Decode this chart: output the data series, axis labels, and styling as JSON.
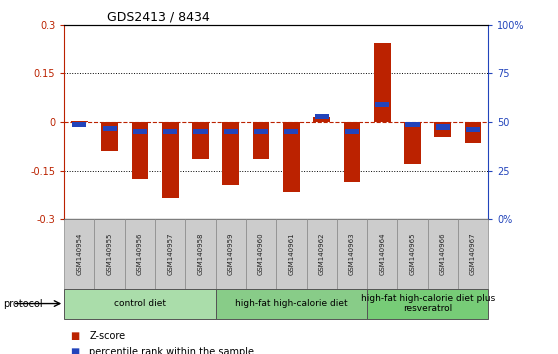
{
  "title": "GDS2413 / 8434",
  "samples": [
    "GSM140954",
    "GSM140955",
    "GSM140956",
    "GSM140957",
    "GSM140958",
    "GSM140959",
    "GSM140960",
    "GSM140961",
    "GSM140962",
    "GSM140963",
    "GSM140964",
    "GSM140965",
    "GSM140966",
    "GSM140967"
  ],
  "zscore": [
    0.005,
    -0.09,
    -0.175,
    -0.235,
    -0.115,
    -0.195,
    -0.115,
    -0.215,
    0.015,
    -0.185,
    0.245,
    -0.13,
    -0.045,
    -0.065
  ],
  "prank": [
    -0.008,
    -0.02,
    -0.03,
    -0.03,
    -0.028,
    -0.028,
    -0.028,
    -0.03,
    0.018,
    -0.028,
    0.055,
    -0.008,
    -0.015,
    -0.022
  ],
  "bar_color": "#bb2200",
  "blue_color": "#2244bb",
  "groups": [
    {
      "label": "control diet",
      "start": 0,
      "end": 5,
      "color": "#aaddaa"
    },
    {
      "label": "high-fat high-calorie diet",
      "start": 5,
      "end": 10,
      "color": "#88cc88"
    },
    {
      "label": "high-fat high-calorie diet plus\nresveratrol",
      "start": 10,
      "end": 14,
      "color": "#77cc77"
    }
  ],
  "ylim": [
    -0.3,
    0.3
  ],
  "yticks_left": [
    -0.3,
    -0.15,
    0.0,
    0.15,
    0.3
  ],
  "ytick_labels_left": [
    "-0.3",
    "-0.15",
    "0",
    "0.15",
    "0.3"
  ],
  "ytick_labels_right": [
    "0%",
    "25",
    "50",
    "75",
    "100%"
  ],
  "hline_color": "#bb2200",
  "dotted_lines": [
    -0.15,
    0.15
  ],
  "protocol_label": "protocol",
  "legend_zscore": "Z-score",
  "legend_prank": "percentile rank within the sample",
  "bar_width": 0.55,
  "blue_bar_height": 0.016,
  "sample_box_color": "#cccccc",
  "sample_text_color": "#222222",
  "bg_color": "#ffffff"
}
